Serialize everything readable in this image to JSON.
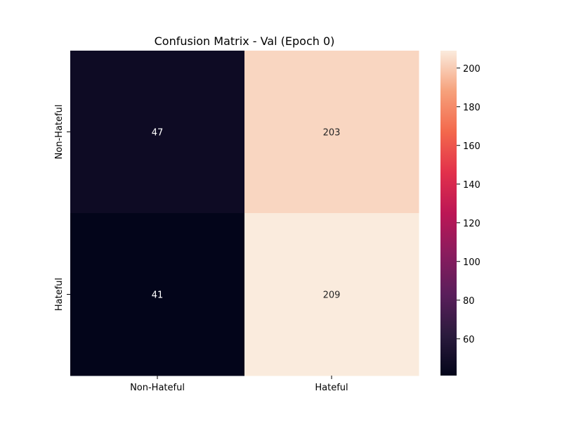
{
  "chart_data": {
    "type": "heatmap",
    "title": "Confusion Matrix - Val (Epoch 0)",
    "xlabel": "",
    "ylabel": "",
    "x_categories": [
      "Non-Hateful",
      "Hateful"
    ],
    "y_categories": [
      "Non-Hateful",
      "Hateful"
    ],
    "values": [
      [
        47,
        203
      ],
      [
        41,
        209
      ]
    ],
    "colormap": "rocket",
    "colorbar": {
      "range": [
        41,
        209
      ],
      "ticks": [
        60,
        80,
        100,
        120,
        140,
        160,
        180,
        200
      ]
    },
    "grid": false,
    "annotation_colors": {
      "on_dark": "#ffffff",
      "on_light": "#262626"
    }
  }
}
